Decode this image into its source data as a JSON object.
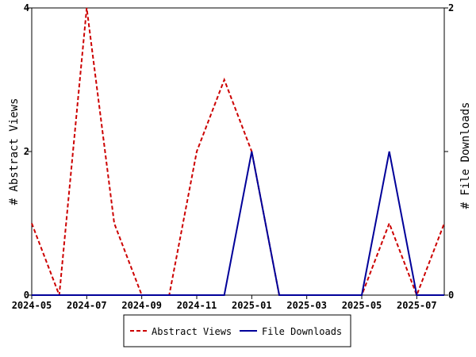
{
  "chart_data": {
    "type": "line",
    "x": [
      "2024-05",
      "2024-06",
      "2024-07",
      "2024-08",
      "2024-09",
      "2024-10",
      "2024-11",
      "2024-12",
      "2025-01",
      "2025-02",
      "2025-03",
      "2025-04",
      "2025-05",
      "2025-06",
      "2025-07",
      "2025-08"
    ],
    "x_ticks": [
      "2024-05",
      "2024-07",
      "2024-09",
      "2024-11",
      "2025-01",
      "2025-03",
      "2025-05",
      "2025-07"
    ],
    "series": [
      {
        "name": "Abstract Views",
        "axis": "left",
        "color": "#cc0000",
        "dash": "dashed",
        "values": [
          1,
          0,
          4,
          1,
          0,
          0,
          2,
          3,
          2,
          0,
          0,
          0,
          0,
          1,
          0,
          1
        ]
      },
      {
        "name": "File Downloads",
        "axis": "right",
        "color": "#000099",
        "dash": "solid",
        "values": [
          0,
          0,
          0,
          0,
          0,
          0,
          0,
          0,
          1,
          0,
          0,
          0,
          0,
          1,
          0,
          0
        ]
      }
    ],
    "ylabel": "# Abstract Views",
    "y2label": "# File Downloads",
    "ylim": [
      0,
      4
    ],
    "y2lim": [
      0,
      2
    ],
    "yticks": [
      "0",
      "2",
      "4"
    ],
    "y2ticks": [
      "0",
      "1",
      "2"
    ],
    "grid": false,
    "legend_position": "bottom"
  }
}
